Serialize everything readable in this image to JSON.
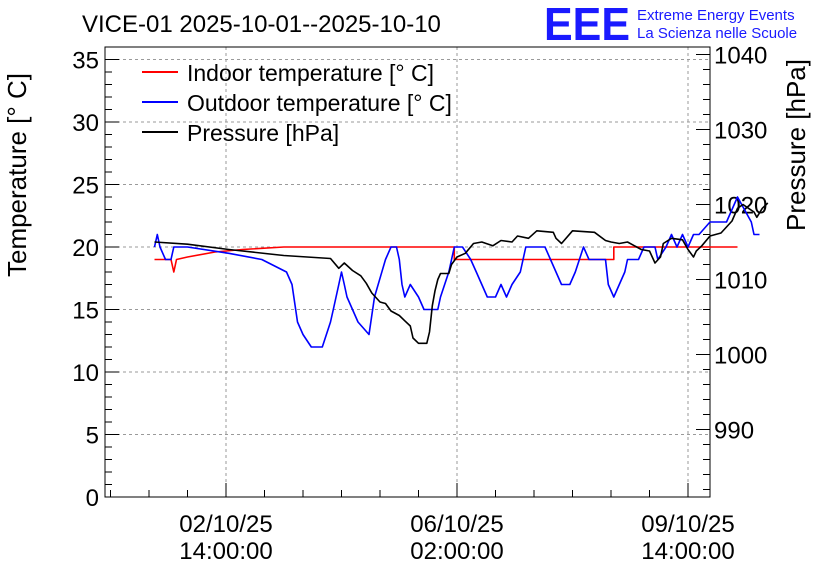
{
  "chart_data": {
    "type": "line",
    "title": "VICE-01 2025-10-01--2025-10-10",
    "ylabel": "Temperature [° C]",
    "y2label": "Pressure [hPa]",
    "ylim": [
      0,
      36
    ],
    "y2lim": [
      981,
      1041
    ],
    "yticks": [
      0,
      5,
      10,
      15,
      20,
      25,
      30,
      35
    ],
    "y2ticks": [
      990,
      1000,
      1010,
      1020,
      1030,
      1040
    ],
    "xlim_hours": [
      -30,
      190
    ],
    "xticks": [
      {
        "hours": 14,
        "line1": "02/10/25",
        "line2": "14:00:00"
      },
      {
        "hours": 98,
        "line1": "06/10/25",
        "line2": "02:00:00"
      },
      {
        "hours": 182,
        "line1": "09/10/25",
        "line2": "14:00:00"
      }
    ],
    "grid": true,
    "legend_position": "top-left",
    "series": [
      {
        "name": "Indoor temperature [° C]",
        "color": "#ff0000",
        "axis": "left",
        "points": [
          [
            -12,
            19
          ],
          [
            -6,
            19
          ],
          [
            -5,
            18
          ],
          [
            -4,
            19
          ],
          [
            0,
            19.2
          ],
          [
            10,
            19.6
          ],
          [
            20,
            19.8
          ],
          [
            35,
            20
          ],
          [
            57,
            20
          ],
          [
            80,
            20
          ],
          [
            97,
            20
          ],
          [
            97,
            19
          ],
          [
            140,
            19
          ],
          [
            155,
            19
          ],
          [
            155,
            20
          ],
          [
            165,
            20
          ],
          [
            180,
            20
          ],
          [
            200,
            20
          ]
        ]
      },
      {
        "name": "Outdoor temperature [° C]",
        "color": "#0000ff",
        "axis": "left",
        "points": [
          [
            -12,
            20
          ],
          [
            -11,
            21
          ],
          [
            -10,
            20
          ],
          [
            -8,
            19
          ],
          [
            -6,
            19
          ],
          [
            -5,
            20
          ],
          [
            0,
            20
          ],
          [
            15,
            19.5
          ],
          [
            27,
            19
          ],
          [
            36,
            18
          ],
          [
            38,
            17
          ],
          [
            40,
            14
          ],
          [
            42,
            13
          ],
          [
            45,
            12
          ],
          [
            49,
            12
          ],
          [
            52,
            14
          ],
          [
            53,
            15
          ],
          [
            55,
            17
          ],
          [
            56,
            18
          ],
          [
            57,
            17
          ],
          [
            58,
            16
          ],
          [
            60,
            15
          ],
          [
            62,
            14
          ],
          [
            66,
            13
          ],
          [
            68,
            16
          ],
          [
            72,
            19
          ],
          [
            74,
            20
          ],
          [
            76,
            20
          ],
          [
            77,
            19
          ],
          [
            78,
            17
          ],
          [
            79,
            16
          ],
          [
            81,
            17
          ],
          [
            84,
            16
          ],
          [
            86,
            15
          ],
          [
            91,
            15
          ],
          [
            92,
            16
          ],
          [
            95,
            18
          ],
          [
            97,
            20
          ],
          [
            100,
            20
          ],
          [
            103,
            19
          ],
          [
            105,
            18
          ],
          [
            107,
            17
          ],
          [
            109,
            16
          ],
          [
            112,
            16
          ],
          [
            114,
            17
          ],
          [
            116,
            16
          ],
          [
            118,
            17
          ],
          [
            121,
            18
          ],
          [
            123,
            20
          ],
          [
            130,
            20
          ],
          [
            132,
            19
          ],
          [
            134,
            18
          ],
          [
            136,
            17
          ],
          [
            139,
            17
          ],
          [
            141,
            18
          ],
          [
            144,
            20
          ],
          [
            146,
            19
          ],
          [
            150,
            19
          ],
          [
            152,
            19
          ],
          [
            153,
            17
          ],
          [
            155,
            16
          ],
          [
            157,
            17
          ],
          [
            159,
            18
          ],
          [
            160,
            19
          ],
          [
            164,
            19
          ],
          [
            166,
            20
          ],
          [
            170,
            20
          ],
          [
            171,
            19
          ],
          [
            174,
            20
          ],
          [
            176,
            21
          ],
          [
            178,
            20
          ],
          [
            180,
            21
          ],
          [
            182,
            20
          ],
          [
            184,
            21
          ],
          [
            186,
            21
          ],
          [
            190,
            22
          ],
          [
            196,
            22
          ],
          [
            200,
            24
          ],
          [
            205,
            22
          ],
          [
            206,
            21
          ],
          [
            208,
            21
          ]
        ]
      },
      {
        "name": "Pressure [hPa]",
        "color": "#000000",
        "axis": "right",
        "points": [
          [
            -12,
            1015
          ],
          [
            0,
            1014.7
          ],
          [
            15,
            1014
          ],
          [
            35,
            1013.2
          ],
          [
            52,
            1012.8
          ],
          [
            55,
            1011.5
          ],
          [
            57,
            1012.2
          ],
          [
            60,
            1011.2
          ],
          [
            63,
            1010.5
          ],
          [
            65,
            1009.5
          ],
          [
            67,
            1008.2
          ],
          [
            70,
            1007
          ],
          [
            72,
            1006.8
          ],
          [
            74,
            1005.8
          ],
          [
            77,
            1005.2
          ],
          [
            79,
            1004.5
          ],
          [
            81,
            1003.8
          ],
          [
            82,
            1002.2
          ],
          [
            84,
            1001.5
          ],
          [
            87,
            1001.5
          ],
          [
            88,
            1003
          ],
          [
            89,
            1006.5
          ],
          [
            90,
            1008.5
          ],
          [
            91,
            1010
          ],
          [
            92,
            1010.8
          ],
          [
            95,
            1010.8
          ],
          [
            96,
            1012
          ],
          [
            98,
            1013
          ],
          [
            101,
            1013.5
          ],
          [
            104,
            1014.8
          ],
          [
            107,
            1015
          ],
          [
            111,
            1014.5
          ],
          [
            114,
            1015.2
          ],
          [
            118,
            1015
          ],
          [
            120,
            1015.8
          ],
          [
            124,
            1015.5
          ],
          [
            127,
            1016.5
          ],
          [
            133,
            1016.3
          ],
          [
            134,
            1015.5
          ],
          [
            136,
            1014.8
          ],
          [
            140,
            1016.5
          ],
          [
            148,
            1016.3
          ],
          [
            152,
            1015.2
          ],
          [
            154,
            1015
          ],
          [
            157,
            1014.8
          ],
          [
            160,
            1015
          ],
          [
            165,
            1014
          ],
          [
            168,
            1013.8
          ],
          [
            170,
            1012.2
          ],
          [
            172,
            1013
          ],
          [
            173,
            1014.8
          ],
          [
            176,
            1015.5
          ],
          [
            180,
            1015.3
          ],
          [
            182,
            1014
          ],
          [
            184,
            1013
          ],
          [
            185,
            1013.8
          ],
          [
            187,
            1014.5
          ],
          [
            190,
            1015.8
          ],
          [
            194,
            1016.2
          ],
          [
            196,
            1017
          ],
          [
            198,
            1017.8
          ],
          [
            200,
            1019.5
          ],
          [
            202,
            1020
          ],
          [
            204,
            1019.5
          ],
          [
            206,
            1019
          ],
          [
            207,
            1018.3
          ],
          [
            209,
            1019.5
          ],
          [
            211,
            1020.2
          ]
        ]
      }
    ]
  },
  "logo": {
    "mark": "EEE",
    "line1": "Extreme Energy Events",
    "line2": "La Scienza nelle Scuole"
  }
}
